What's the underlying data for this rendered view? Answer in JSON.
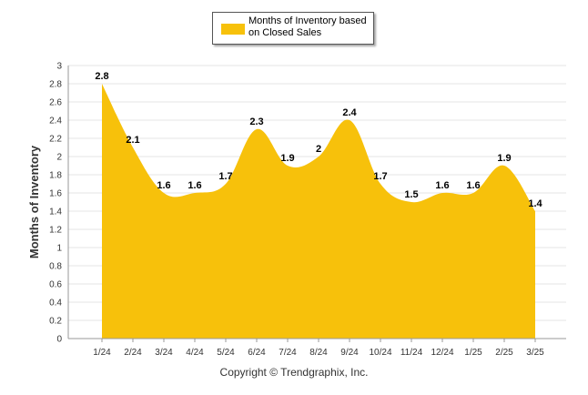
{
  "chart_data": {
    "type": "area",
    "categories": [
      "1/24",
      "2/24",
      "3/24",
      "4/24",
      "5/24",
      "6/24",
      "7/24",
      "8/24",
      "9/24",
      "10/24",
      "11/24",
      "12/24",
      "1/25",
      "2/25",
      "3/25"
    ],
    "series": [
      {
        "name": "Months of Inventory based on Closed Sales",
        "values": [
          2.8,
          2.1,
          1.6,
          1.6,
          1.7,
          2.3,
          1.9,
          2,
          2.4,
          1.7,
          1.5,
          1.6,
          1.6,
          1.9,
          1.4
        ],
        "color": "#F7C10B"
      }
    ],
    "data_labels": [
      "2.8",
      "2.1",
      "1.6",
      "1.6",
      "1.7",
      "2.3",
      "1.9",
      "2",
      "2.4",
      "1.7",
      "1.5",
      "1.6",
      "1.6",
      "1.9",
      "1.4"
    ],
    "ylabel": "Months of Inventory",
    "xlabel": "",
    "ylim": [
      0,
      3
    ],
    "yticks": [
      0,
      0.2,
      0.4,
      0.6,
      0.8,
      1,
      1.2,
      1.4,
      1.6,
      1.8,
      2,
      2.2,
      2.4,
      2.6,
      2.8,
      3
    ],
    "ytick_labels": [
      "0",
      "0.2",
      "0.4",
      "0.6",
      "0.8",
      "1",
      "1.2",
      "1.4",
      "1.6",
      "1.8",
      "2",
      "2.2",
      "2.4",
      "2.6",
      "2.8",
      "3"
    ],
    "grid": true,
    "legend": "top-center"
  },
  "legend": {
    "label": "Months of Inventory based on Closed Sales"
  },
  "footer": {
    "copyright": "Copyright © Trendgraphix, Inc."
  },
  "colors": {
    "area": "#F7C10B",
    "grid": "#e6e6e6",
    "axis": "#999999"
  }
}
